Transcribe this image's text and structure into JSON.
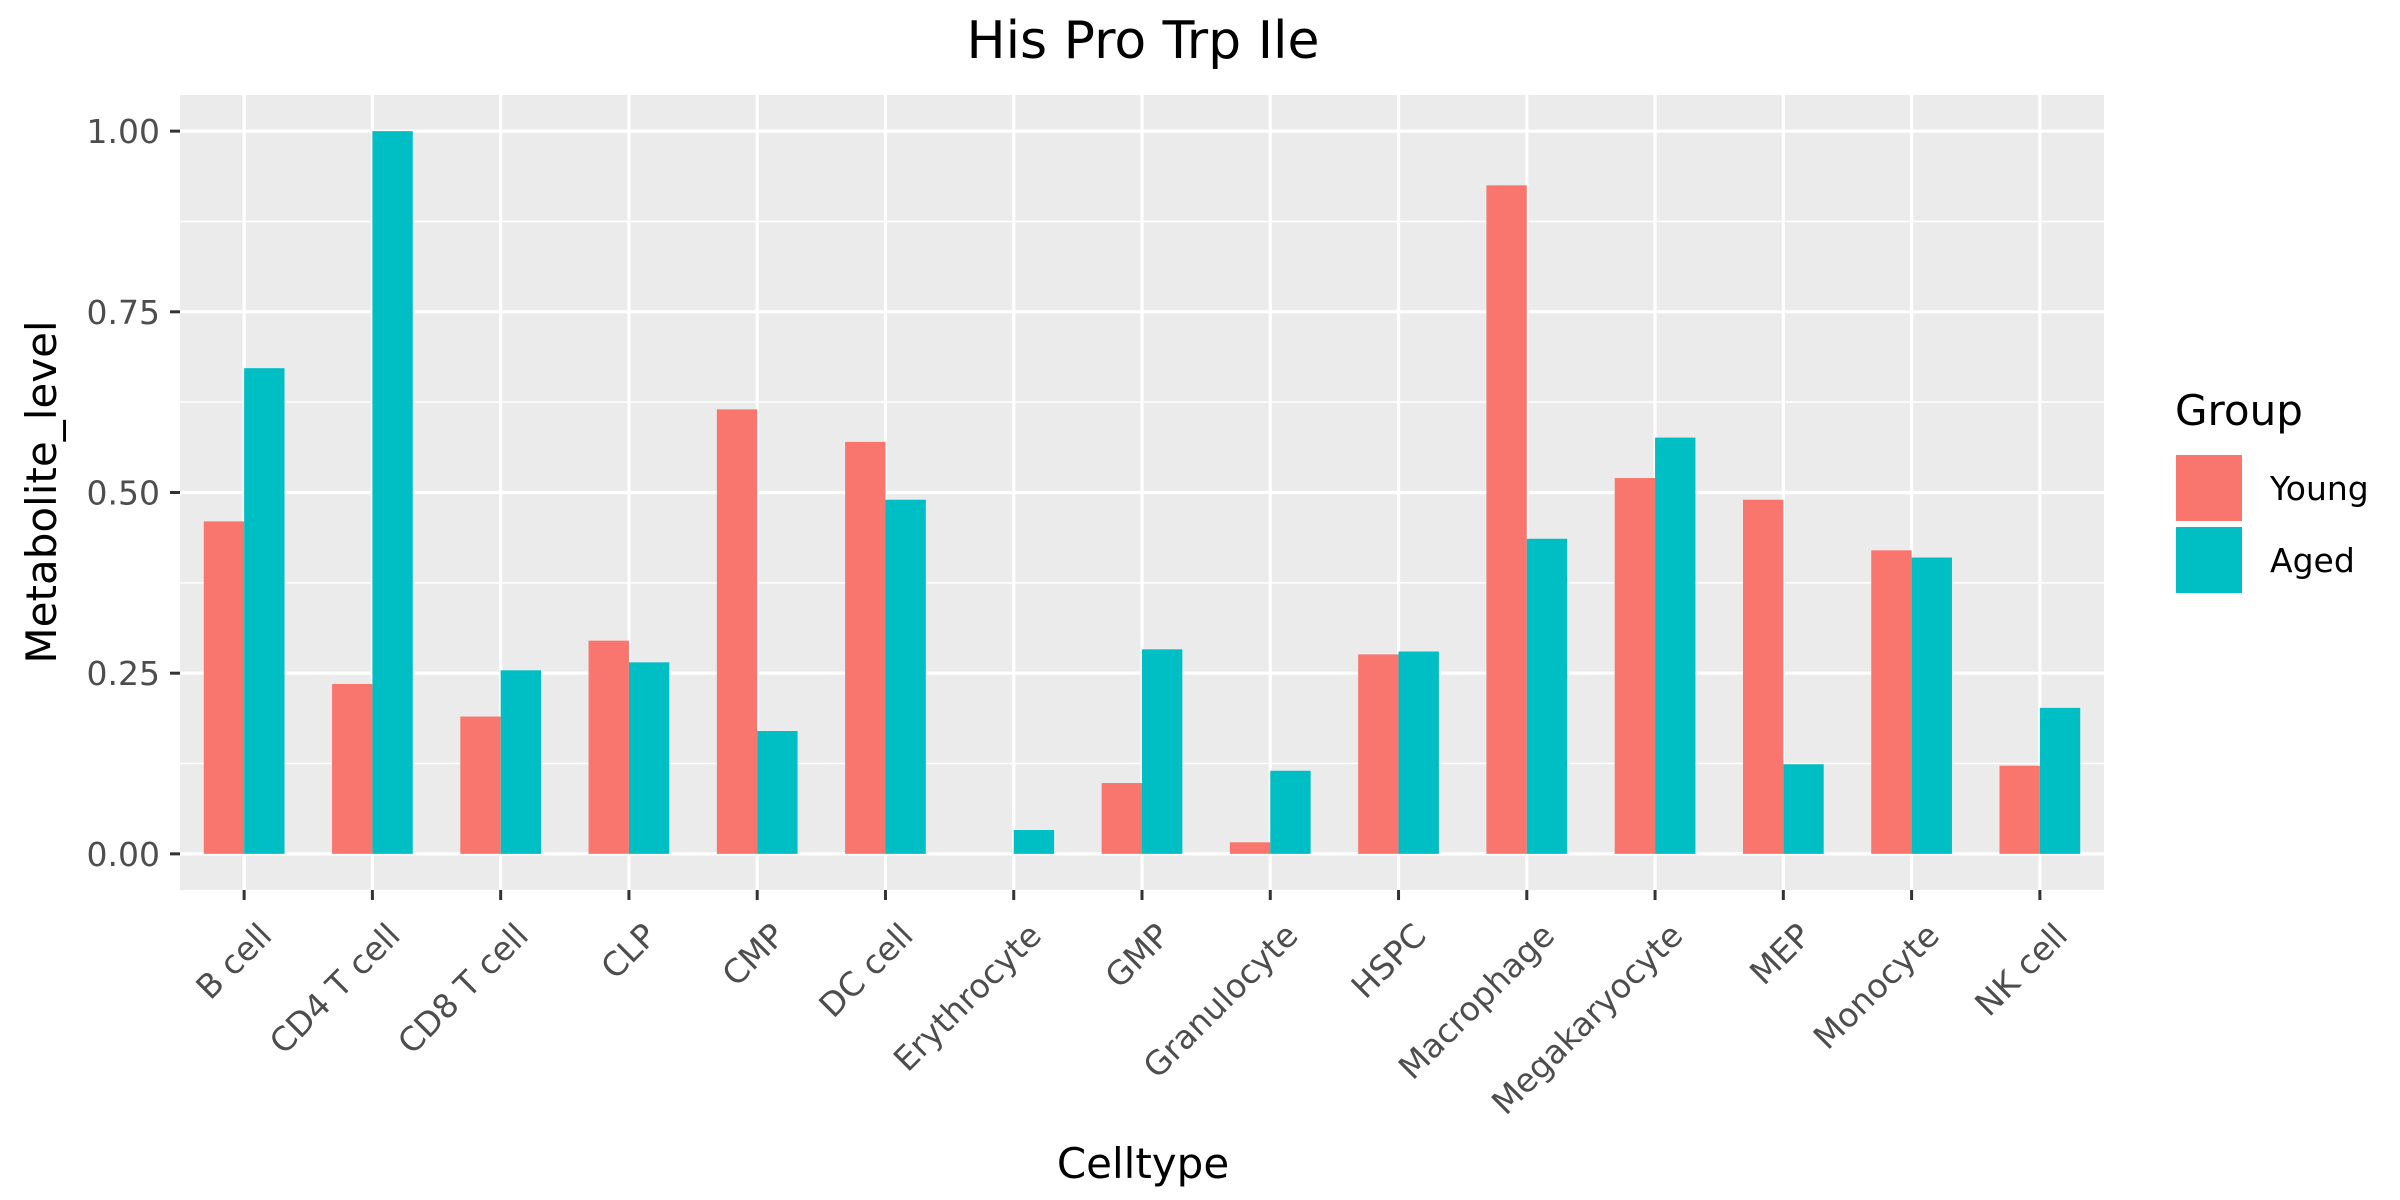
{
  "chart_data": {
    "type": "bar",
    "title": "His Pro Trp Ile",
    "xlabel": "Celltype",
    "ylabel": "Metabolite_level",
    "ylim": [
      -0.05,
      1.05
    ],
    "yticks": [
      0.0,
      0.25,
      0.5,
      0.75,
      1.0
    ],
    "ytick_labels": [
      "0.00",
      "0.25",
      "0.50",
      "0.75",
      "1.00"
    ],
    "grid": true,
    "legend_position": "right",
    "legend_title": "Group",
    "categories": [
      "B cell",
      "CD4 T cell",
      "CD8 T cell",
      "CLP",
      "CMP",
      "DC cell",
      "Erythrocyte",
      "GMP",
      "Granulocyte",
      "HSPC",
      "Macrophage",
      "Megakaryocyte",
      "MEP",
      "Monocyte",
      "NK cell"
    ],
    "series": [
      {
        "name": "Young",
        "color": "#F8766D",
        "values": [
          0.46,
          0.235,
          0.19,
          0.295,
          0.615,
          0.57,
          0.0,
          0.098,
          0.016,
          0.276,
          0.925,
          0.52,
          0.49,
          0.42,
          0.122
        ]
      },
      {
        "name": "Aged",
        "color": "#00BFC4",
        "values": [
          0.672,
          1.0,
          0.254,
          0.265,
          0.17,
          0.49,
          0.033,
          0.283,
          0.115,
          0.28,
          0.436,
          0.576,
          0.124,
          0.41,
          0.202
        ]
      }
    ]
  },
  "colors": {
    "panel_background": "#EBEBEB",
    "grid_major": "#FFFFFF",
    "axis_text": "#4D4D4D",
    "tick_mark": "#333333"
  }
}
